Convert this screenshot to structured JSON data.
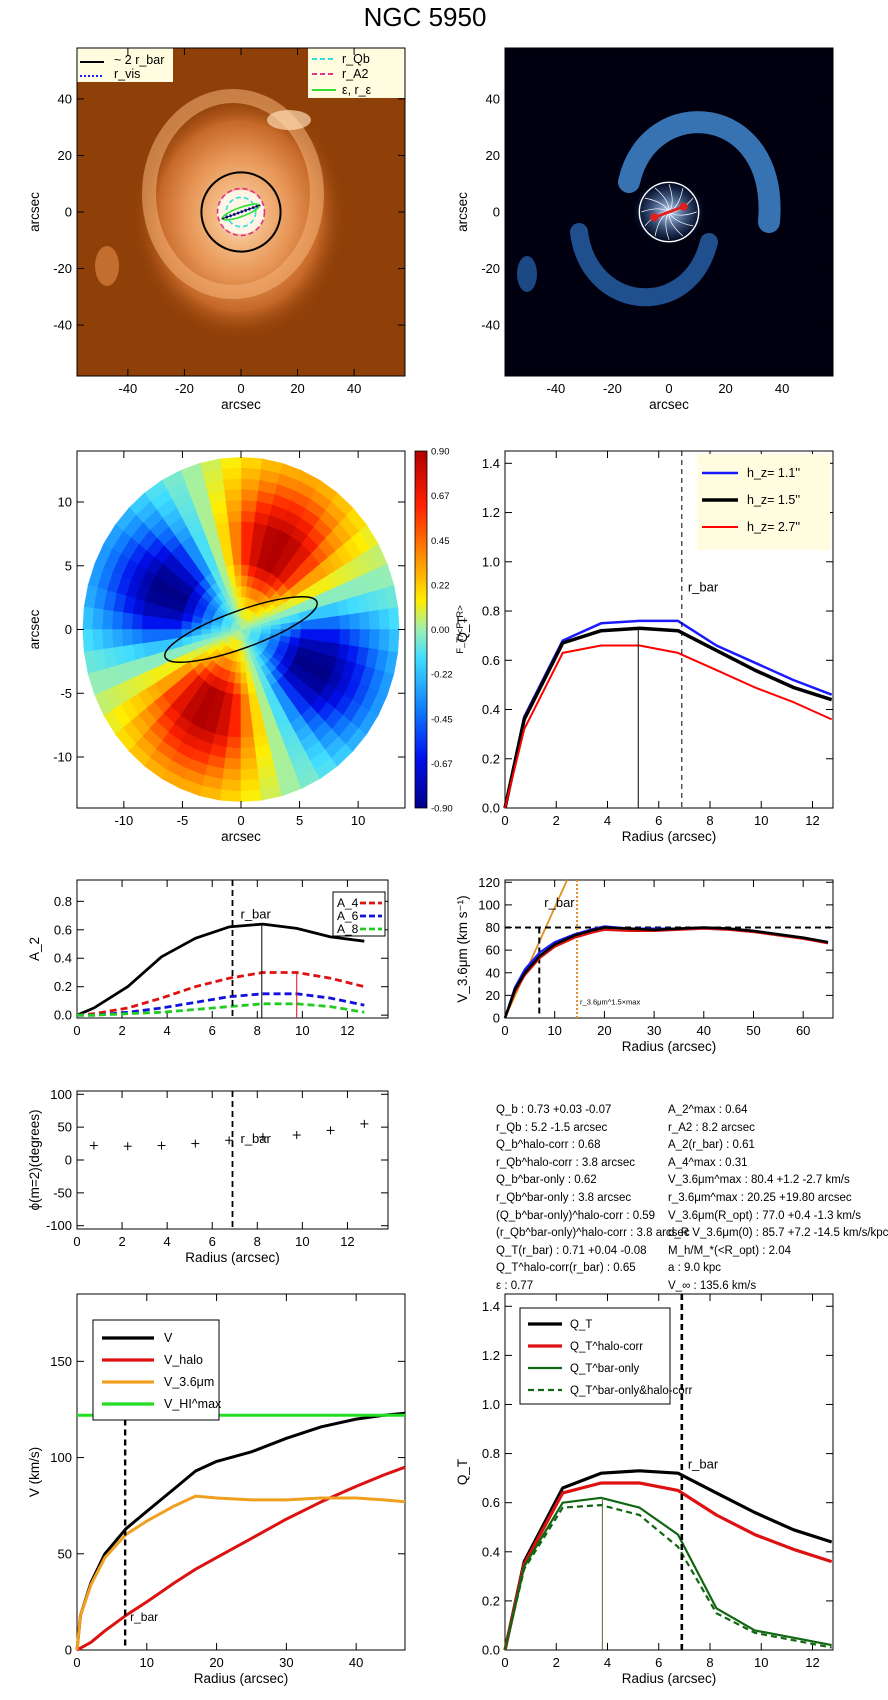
{
  "title": "NGC 5950",
  "chart_data": [
    {
      "id": "image_orange",
      "type": "heatmap",
      "xlabel": "arcsec",
      "ylabel": "arcsec",
      "xlim": [
        -58,
        58
      ],
      "ylim": [
        -58,
        58
      ],
      "xticks": [
        -40,
        -20,
        0,
        20,
        40
      ],
      "yticks": [
        -40,
        -20,
        0,
        20,
        40
      ],
      "legend": [
        "~ 2 r_bar",
        "r_vis",
        "r_Qb",
        "r_A2",
        "ε, r_ε"
      ],
      "legend_colors": [
        "#000000",
        "#1a1aff",
        "#33dddd",
        "#e0308a",
        "#33dd33"
      ]
    },
    {
      "id": "image_blue",
      "type": "heatmap",
      "xlabel": "arcsec",
      "ylabel": "arcsec",
      "xlim": [
        -58,
        58
      ],
      "ylim": [
        -58,
        58
      ],
      "xticks": [
        -40,
        -20,
        0,
        20,
        40
      ],
      "yticks": [
        -40,
        -20,
        0,
        20,
        40
      ]
    },
    {
      "id": "force_map",
      "type": "heatmap",
      "xlabel": "arcsec",
      "ylabel": "arcsec",
      "xlim": [
        -14,
        14
      ],
      "ylim": [
        -14,
        14
      ],
      "xticks": [
        -10,
        -5,
        0,
        5,
        10
      ],
      "yticks": [
        -10,
        -5,
        0,
        5,
        10
      ],
      "colorbar_label": "F_T/<F_R>",
      "colorbar_ticks": [
        "0.90",
        "0.67",
        "0.45",
        "0.22",
        "0.00",
        "-0.22",
        "-0.45",
        "-0.67",
        "-0.90"
      ]
    },
    {
      "id": "qt_hz",
      "type": "line",
      "xlabel": "Radius (arcsec)",
      "ylabel": "Q_T",
      "xlim": [
        0,
        12.8
      ],
      "ylim": [
        0,
        1.45
      ],
      "xticks": [
        0,
        2,
        4,
        6,
        8,
        10,
        12
      ],
      "yticks": [
        "0.0",
        "0.2",
        "0.4",
        "0.6",
        "0.8",
        "1.0",
        "1.2",
        "1.4"
      ],
      "x": [
        0,
        0.75,
        2.25,
        3.75,
        5.25,
        6.75,
        8.25,
        9.75,
        11.25,
        12.75
      ],
      "series": [
        {
          "name": "h_z= 1.1''",
          "color": "#1a1aff",
          "values": [
            0,
            0.37,
            0.68,
            0.75,
            0.76,
            0.76,
            0.66,
            0.59,
            0.52,
            0.46
          ]
        },
        {
          "name": "h_z= 1.5''",
          "color": "#000000",
          "values": [
            0,
            0.36,
            0.67,
            0.72,
            0.73,
            0.72,
            0.64,
            0.56,
            0.49,
            0.44
          ]
        },
        {
          "name": "h_z= 2.7''",
          "color": "#ff0000",
          "values": [
            0,
            0.32,
            0.63,
            0.66,
            0.66,
            0.63,
            0.56,
            0.49,
            0.43,
            0.36
          ]
        }
      ],
      "annotation": "r_bar",
      "rbar": 6.9,
      "qb_radius": 5.2
    },
    {
      "id": "a2",
      "type": "line",
      "xlabel": "",
      "ylabel": "A_2",
      "xlim": [
        0,
        13.8
      ],
      "ylim": [
        -0.02,
        0.95
      ],
      "xticks": [
        0,
        2,
        4,
        6,
        8,
        10,
        12
      ],
      "yticks": [
        "0.0",
        "0.2",
        "0.4",
        "0.6",
        "0.8"
      ],
      "x": [
        0,
        0.75,
        2.25,
        3.75,
        5.25,
        6.75,
        8.25,
        9.75,
        11.25,
        12.75
      ],
      "series": [
        {
          "name": "A_2",
          "color": "#000000",
          "values": [
            0,
            0.05,
            0.2,
            0.41,
            0.54,
            0.62,
            0.64,
            0.61,
            0.55,
            0.52
          ]
        },
        {
          "name": "A_4",
          "color": "#dd1111",
          "values": [
            0,
            0.01,
            0.05,
            0.12,
            0.2,
            0.26,
            0.3,
            0.3,
            0.26,
            0.2
          ]
        },
        {
          "name": "A_6",
          "color": "#1111dd",
          "values": [
            0,
            0.0,
            0.02,
            0.05,
            0.09,
            0.13,
            0.15,
            0.15,
            0.12,
            0.07
          ]
        },
        {
          "name": "A_8",
          "color": "#22cc22",
          "values": [
            0,
            0.0,
            0.01,
            0.02,
            0.04,
            0.06,
            0.08,
            0.08,
            0.06,
            0.02
          ]
        }
      ],
      "annotation": "r_bar",
      "rbar": 6.9
    },
    {
      "id": "v36",
      "type": "line",
      "xlabel": "Radius (arcsec)",
      "ylabel": "V_3.6μm (km s⁻¹)",
      "xlim": [
        0,
        66
      ],
      "ylim": [
        0,
        122
      ],
      "xticks": [
        0,
        10,
        20,
        30,
        40,
        50,
        60
      ],
      "yticks": [
        "0",
        "20",
        "40",
        "60",
        "80",
        "100",
        "120"
      ],
      "x": [
        0,
        2,
        4,
        7,
        10,
        14,
        18,
        20,
        25,
        30,
        35,
        40,
        45,
        50,
        55,
        60,
        65
      ],
      "series": [
        {
          "name": "V_3.6μm",
          "color": "#000000",
          "values": [
            0,
            25,
            40,
            55,
            65,
            73,
            78,
            80,
            79,
            78,
            79,
            80,
            79,
            77,
            74,
            71,
            67
          ]
        },
        {
          "name": "V_3.6μm blue",
          "color": "#1a1aff",
          "values": [
            0,
            27,
            43,
            58,
            67,
            74,
            79,
            81,
            79,
            79,
            79,
            80,
            79,
            77,
            74,
            71,
            67
          ]
        },
        {
          "name": "V_3.6μm red",
          "color": "#dd1111",
          "values": [
            0,
            23,
            38,
            53,
            63,
            71,
            76,
            78,
            77,
            77,
            78,
            79,
            78,
            76,
            73,
            70,
            66
          ]
        }
      ],
      "annotation": "r_bar",
      "rbar": 6.9,
      "vmax": 80,
      "rmax": 14.5,
      "rmax_label": "r_3.6μm^1.5×max"
    },
    {
      "id": "phase",
      "type": "scatter",
      "xlabel": "Radius (arcsec)",
      "ylabel": "ϕ(m=2)(degrees)",
      "xlim": [
        0,
        13.8
      ],
      "ylim": [
        -105,
        105
      ],
      "xticks": [
        0,
        2,
        4,
        6,
        8,
        10,
        12
      ],
      "yticks": [
        "-100",
        "-50",
        "0",
        "50",
        "100"
      ],
      "x": [
        0.75,
        2.25,
        3.75,
        5.25,
        6.75,
        8.25,
        9.75,
        11.25,
        12.75
      ],
      "values": [
        22,
        21,
        22,
        25,
        30,
        35,
        38,
        45,
        55
      ],
      "annotation": "r_bar",
      "rbar": 6.9
    },
    {
      "id": "rotation",
      "type": "line",
      "xlabel": "Radius (arcsec)",
      "ylabel": "V (km/s)",
      "xlim": [
        0,
        47
      ],
      "ylim": [
        0,
        185
      ],
      "xticks": [
        0,
        10,
        20,
        30,
        40
      ],
      "yticks": [
        "0",
        "50",
        "100",
        "150"
      ],
      "x": [
        0,
        0.5,
        2,
        4,
        7,
        10,
        14,
        17,
        20,
        25,
        30,
        35,
        40,
        44,
        47
      ],
      "series": [
        {
          "name": "V",
          "color": "#000000",
          "values": [
            0,
            18,
            35,
            50,
            63,
            72,
            84,
            93,
            98,
            103,
            110,
            116,
            120,
            122,
            123
          ]
        },
        {
          "name": "V_halo",
          "color": "#dd1111",
          "values": [
            0,
            1,
            4,
            10,
            18,
            25,
            35,
            42,
            48,
            58,
            68,
            77,
            85,
            91,
            95
          ]
        },
        {
          "name": "V_3.6μm",
          "color": "#f0a020",
          "values": [
            0,
            18,
            34,
            48,
            60,
            67,
            75,
            80,
            79,
            78,
            78,
            79,
            79,
            78,
            77
          ]
        },
        {
          "name": "V_HI^max",
          "color": "#22dd22",
          "values": [
            122,
            122,
            122,
            122,
            122,
            122,
            122,
            122,
            122,
            122,
            122,
            122,
            122,
            122,
            122
          ]
        }
      ],
      "annotation": "r_bar",
      "rbar": 6.9
    },
    {
      "id": "qt_corr",
      "type": "line",
      "xlabel": "Radius (arcsec)",
      "ylabel": "Q_T",
      "xlim": [
        0,
        12.8
      ],
      "ylim": [
        0,
        1.45
      ],
      "xticks": [
        0,
        2,
        4,
        6,
        8,
        10,
        12
      ],
      "yticks": [
        "0.0",
        "0.2",
        "0.4",
        "0.6",
        "0.8",
        "1.0",
        "1.2",
        "1.4"
      ],
      "x": [
        0,
        0.75,
        2.25,
        3.75,
        5.25,
        6.75,
        8.25,
        9.75,
        11.25,
        12.75
      ],
      "series": [
        {
          "name": "Q_T",
          "color": "#000000",
          "values": [
            0,
            0.36,
            0.66,
            0.72,
            0.73,
            0.72,
            0.64,
            0.56,
            0.49,
            0.44
          ]
        },
        {
          "name": "Q_T^halo-corr",
          "color": "#dd1111",
          "values": [
            0,
            0.35,
            0.64,
            0.68,
            0.68,
            0.65,
            0.55,
            0.47,
            0.41,
            0.36
          ]
        },
        {
          "name": "Q_T^bar-only",
          "color": "#116611",
          "values": [
            0,
            0.34,
            0.6,
            0.62,
            0.58,
            0.47,
            0.17,
            0.08,
            0.05,
            0.02
          ]
        },
        {
          "name": "Q_T^bar-only&halo-corr",
          "color": "#116611",
          "values": [
            0,
            0.33,
            0.58,
            0.59,
            0.55,
            0.42,
            0.15,
            0.07,
            0.04,
            0.01
          ]
        }
      ],
      "annotation": "r_bar",
      "rbar": 6.9,
      "qb_radius": 3.8
    }
  ],
  "stats_left": [
    "Q_b :  0.73 +0.03 -0.07",
    "r_Qb :  5.2 -1.5 arcsec",
    "Q_b^halo-corr :  0.68",
    "r_Qb^halo-corr :  3.8 arcsec",
    "Q_b^bar-only :  0.62",
    "r_Qb^bar-only :  3.8 arcsec",
    "(Q_b^bar-only)^halo-corr :  0.59",
    "(r_Qb^bar-only)^halo-corr :  3.8 arcsec",
    "Q_T(r_bar) :  0.71 +0.04 -0.08",
    "Q_T^halo-corr(r_bar) :  0.65",
    "ε :  0.77"
  ],
  "stats_right": [
    "A_2^max :  0.64",
    "r_A2 :  8.2 arcsec",
    "A_2(r_bar) :  0.61",
    "A_4^max :  0.31",
    "V_3.6μm^max :  80.4 +1.2 -2.7 km/s",
    "r_3.6μm^max :  20.25 +19.80 arcsec",
    "V_3.6μm(R_opt) :  77.0 +0.4 -1.3 km/s",
    "d_R V_3.6μm(0) :  85.7 +7.2 -14.5 km/s/kpc",
    "M_h/M_*(<R_opt) :  2.04",
    "a :  9.0 kpc",
    "V_∞ :  135.6 km/s"
  ]
}
